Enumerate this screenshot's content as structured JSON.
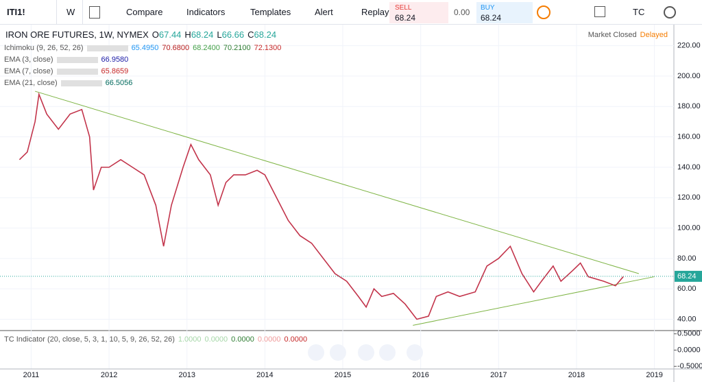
{
  "toolbar": {
    "symbol": "ITI1!",
    "interval": "W",
    "compare": "Compare",
    "indicators": "Indicators",
    "templates": "Templates",
    "alert": "Alert",
    "replay": "Replay",
    "sell_label": "SELL",
    "sell_price": "68.24",
    "spread": "0.00",
    "buy_label": "BUY",
    "buy_price": "68.24",
    "account": "TC"
  },
  "legend": {
    "title": "IRON ORE FUTURES, 1W, NYMEX",
    "ohlc": [
      {
        "label": "O",
        "value": "67.44"
      },
      {
        "label": "H",
        "value": "68.24"
      },
      {
        "label": "L",
        "value": "66.66"
      },
      {
        "label": "C",
        "value": "68.24"
      }
    ],
    "status": "Market Closed",
    "delay": "Delayed",
    "studies": [
      {
        "name": "Ichimoku (9, 26, 52, 26)",
        "values": [
          {
            "text": "65.4950",
            "color": "#2196f3"
          },
          {
            "text": "70.6800",
            "color": "#b71c1c"
          },
          {
            "text": "68.2400",
            "color": "#43a047"
          },
          {
            "text": "70.2100",
            "color": "#2e7d32"
          },
          {
            "text": "72.1300",
            "color": "#c62828"
          }
        ]
      },
      {
        "name": "EMA (3, close)",
        "values": [
          {
            "text": "66.9580",
            "color": "#1a1aa6"
          }
        ]
      },
      {
        "name": "EMA (7, close)",
        "values": [
          {
            "text": "65.8659",
            "color": "#c62828"
          }
        ]
      },
      {
        "name": "EMA (21, close)",
        "values": [
          {
            "text": "66.5056",
            "color": "#00695c"
          }
        ]
      }
    ]
  },
  "indicator": {
    "name": "TC Indicator (20, close, 5, 3, 1, 10, 5, 9, 26, 52, 26)",
    "values": [
      {
        "text": "1.0000",
        "color": "#a5d6a7"
      },
      {
        "text": "0.0000",
        "color": "#a5d6a7"
      },
      {
        "text": "0.0000",
        "color": "#2e7d32"
      },
      {
        "text": "0.0000",
        "color": "#ef9a9a"
      },
      {
        "text": "0.0000",
        "color": "#c62828"
      }
    ],
    "ylim": [
      -0.58,
      0.6
    ],
    "yticks": [
      {
        "value": 0.5,
        "label": "0.5000"
      },
      {
        "value": 0,
        "label": "0.0000"
      },
      {
        "value": -0.5,
        "label": "-0.5000"
      }
    ]
  },
  "chart_data": {
    "type": "line",
    "x": [
      2010.85,
      2010.95,
      2011.05,
      2011.1,
      2011.2,
      2011.35,
      2011.5,
      2011.65,
      2011.75,
      2011.8,
      2011.9,
      2012.0,
      2012.15,
      2012.3,
      2012.45,
      2012.6,
      2012.7,
      2012.8,
      2012.95,
      2013.05,
      2013.15,
      2013.3,
      2013.4,
      2013.5,
      2013.6,
      2013.75,
      2013.9,
      2014.0,
      2014.15,
      2014.3,
      2014.45,
      2014.6,
      2014.75,
      2014.9,
      2015.05,
      2015.2,
      2015.3,
      2015.4,
      2015.5,
      2015.65,
      2015.8,
      2015.95,
      2016.1,
      2016.2,
      2016.35,
      2016.5,
      2016.7,
      2016.85,
      2017.0,
      2017.15,
      2017.3,
      2017.45,
      2017.55,
      2017.7,
      2017.8,
      2017.95,
      2018.05,
      2018.15,
      2018.35,
      2018.5,
      2018.6
    ],
    "values": [
      145,
      150,
      170,
      188,
      175,
      165,
      175,
      178,
      160,
      125,
      140,
      140,
      145,
      140,
      135,
      115,
      88,
      115,
      140,
      155,
      145,
      135,
      115,
      130,
      135,
      135,
      138,
      135,
      120,
      105,
      95,
      90,
      80,
      70,
      65,
      55,
      48,
      60,
      55,
      57,
      50,
      40,
      42,
      55,
      58,
      55,
      58,
      75,
      80,
      88,
      70,
      58,
      65,
      75,
      65,
      72,
      77,
      68,
      65,
      62,
      68
    ],
    "color": "#c2334a",
    "trendlines": [
      {
        "x": [
          2011.05,
          2018.8
        ],
        "values": [
          190,
          70
        ],
        "color": "#7cb342"
      },
      {
        "x": [
          2015.9,
          2019.0
        ],
        "values": [
          36,
          68
        ],
        "color": "#7cb342"
      }
    ],
    "last_price": {
      "value": 68.24,
      "label": "68.24",
      "color": "#26a69a"
    },
    "xlim": [
      2010.6,
      2019.25
    ],
    "xticks": [
      2011,
      2012,
      2013,
      2014,
      2015,
      2016,
      2017,
      2018,
      2019
    ],
    "ylim": [
      33,
      232
    ],
    "yticks": [
      {
        "value": 40,
        "label": "40.00"
      },
      {
        "value": 60,
        "label": "60.00"
      },
      {
        "value": 80,
        "label": "80.00"
      },
      {
        "value": 100,
        "label": "100.00"
      },
      {
        "value": 120,
        "label": "120.00"
      },
      {
        "value": 140,
        "label": "140.00"
      },
      {
        "value": 160,
        "label": "160.00"
      },
      {
        "value": 180,
        "label": "180.00"
      },
      {
        "value": 200,
        "label": "200.00"
      },
      {
        "value": 220,
        "label": "220.00"
      }
    ]
  }
}
